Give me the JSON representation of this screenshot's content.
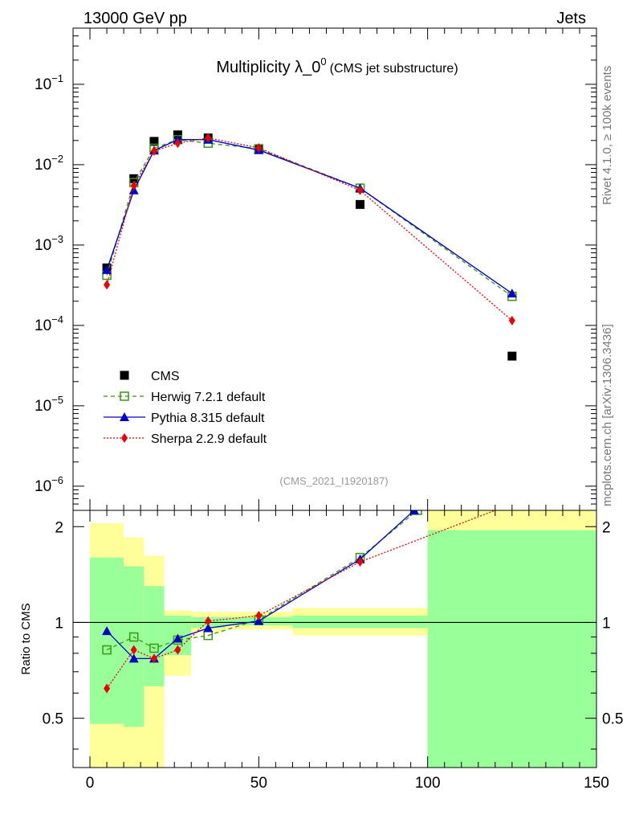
{
  "header": {
    "energy_label": "13000 GeV pp",
    "category_label": "Jets",
    "side_label_top": "Rivet 4.1.0, ≥ 100k events",
    "side_label_bottom": "mcplots.cern.ch [arXiv:1306.3436]"
  },
  "chart_data": [
    {
      "type": "scatter",
      "title": "Multiplicity λ_0",
      "title_sup": "0",
      "subtitle": "(CMS jet substructure)",
      "watermark": "(CMS_2021_I1920187)",
      "xlabel": "",
      "ylabel": "",
      "xlim": [
        -5,
        150
      ],
      "ylim": [
        5e-07,
        0.5
      ],
      "yscale": "log",
      "ytick_labels": [
        {
          "base": "10",
          "exp": "−6",
          "value": 1e-06
        },
        {
          "base": "10",
          "exp": "−5",
          "value": 1e-05
        },
        {
          "base": "10",
          "exp": "−4",
          "value": 0.0001
        },
        {
          "base": "10",
          "exp": "−3",
          "value": 0.001
        },
        {
          "base": "10",
          "exp": "−2",
          "value": 0.01
        },
        {
          "base": "10",
          "exp": "−1",
          "value": 0.1
        }
      ],
      "legend": [
        {
          "label": "CMS",
          "color": "#000000",
          "marker": "square"
        },
        {
          "label": "Herwig 7.2.1 default",
          "color": "#339911",
          "marker": "open-square",
          "dash": "5,4"
        },
        {
          "label": "Pythia 8.315 default",
          "color": "#0000cc",
          "marker": "triangle",
          "dash": ""
        },
        {
          "label": "Sherpa 2.2.9 default",
          "color": "#ee0000",
          "marker": "diamond",
          "dash": "2,2"
        }
      ],
      "legend_position": "lower-left",
      "series": [
        {
          "name": "CMS",
          "x": [
            5,
            13,
            19,
            26,
            35,
            50,
            80,
            125
          ],
          "values": [
            0.00052,
            0.0067,
            0.0195,
            0.0235,
            0.0215,
            0.0155,
            0.0032,
            4.15e-05
          ]
        },
        {
          "name": "Herwig 7.2.1 default",
          "x": [
            5,
            13,
            19,
            26,
            35,
            50,
            80,
            125
          ],
          "values": [
            0.00042,
            0.006,
            0.016,
            0.0205,
            0.0185,
            0.0158,
            0.0051,
            0.00023
          ]
        },
        {
          "name": "Pythia 8.315 default",
          "x": [
            5,
            13,
            19,
            26,
            35,
            50,
            80,
            125
          ],
          "values": [
            0.00049,
            0.0048,
            0.015,
            0.0205,
            0.0205,
            0.0152,
            0.0051,
            0.00025
          ]
        },
        {
          "name": "Sherpa 2.2.9 default",
          "x": [
            5,
            13,
            19,
            26,
            35,
            50,
            80,
            125
          ],
          "values": [
            0.00032,
            0.0055,
            0.0148,
            0.0185,
            0.0215,
            0.0162,
            0.0048,
            0.000115
          ]
        }
      ]
    },
    {
      "type": "line",
      "title": "",
      "xlabel": "",
      "ylabel": "Ratio to CMS",
      "xlim": [
        -5,
        150
      ],
      "ylim": [
        0.35,
        2.25
      ],
      "yscale": "log",
      "xtick_labels": [
        "0",
        "50",
        "100",
        "150"
      ],
      "ytick_labels": [
        "0.5",
        "1",
        "2"
      ],
      "bands": {
        "edges": [
          0,
          10,
          16,
          22,
          30,
          40,
          60,
          100,
          150
        ],
        "green_low": [
          0.48,
          0.47,
          0.63,
          0.79,
          0.96,
          0.98,
          0.96,
          0.35
        ],
        "green_high": [
          1.6,
          1.5,
          1.3,
          1.05,
          1.04,
          1.04,
          1.05,
          1.95
        ],
        "yellow_low": [
          0.3,
          0.3,
          0.3,
          0.68,
          0.93,
          0.95,
          0.91,
          0.35
        ],
        "yellow_high": [
          2.05,
          1.85,
          1.62,
          1.09,
          1.08,
          1.08,
          1.11,
          2.25
        ]
      },
      "reference_line": 1,
      "series": [
        {
          "name": "Herwig 7.2.1 default",
          "x": [
            5,
            13,
            19,
            26,
            35,
            50,
            80,
            97
          ],
          "values": [
            0.82,
            0.9,
            0.83,
            0.88,
            0.91,
            1.02,
            1.6,
            2.25
          ]
        },
        {
          "name": "Pythia 8.315 default",
          "x": [
            5,
            13,
            19,
            26,
            35,
            50,
            80,
            96
          ],
          "values": [
            0.94,
            0.77,
            0.77,
            0.89,
            0.96,
            1.01,
            1.58,
            2.25
          ]
        },
        {
          "name": "Sherpa 2.2.9 default",
          "x": [
            5,
            13,
            19,
            26,
            35,
            50,
            80,
            120
          ],
          "values": [
            0.62,
            0.82,
            0.77,
            0.82,
            1.01,
            1.05,
            1.55,
            2.25
          ]
        }
      ]
    }
  ]
}
